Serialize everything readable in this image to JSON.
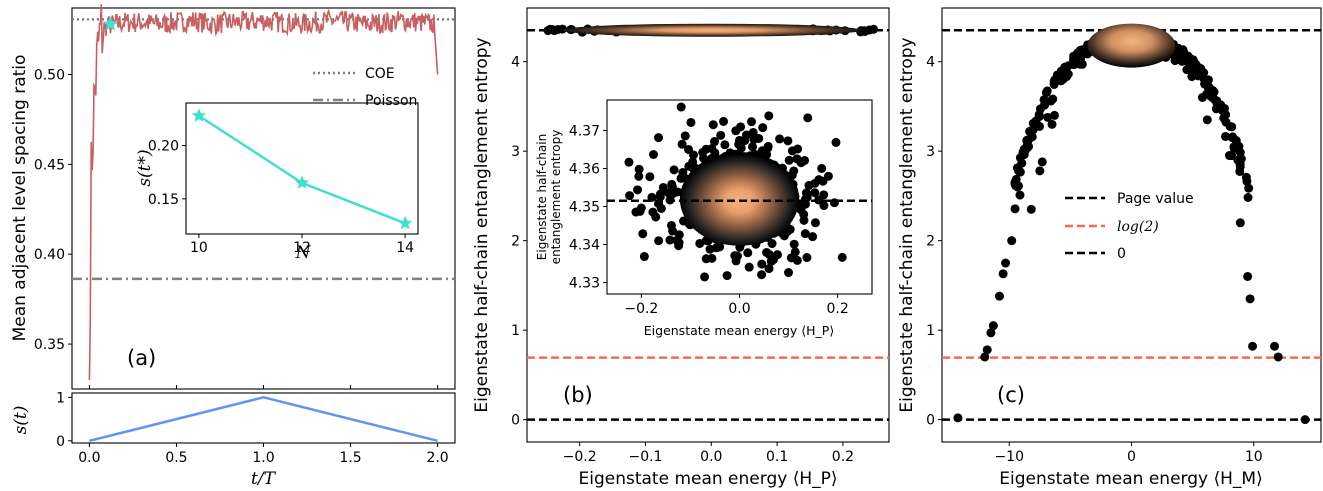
{
  "chart_data": [
    {
      "panel": "a-top",
      "type": "line",
      "tag": "(a)",
      "ylabel": "Mean adjacent level spacing ratio",
      "xlim": [
        -0.1,
        2.1
      ],
      "ylim": [
        0.325,
        0.537
      ],
      "yticks": [
        0.35,
        0.4,
        0.45,
        0.5
      ],
      "ytick_labels": [
        "0.35",
        "0.40",
        "0.45",
        "0.50"
      ],
      "xticks": [
        0.0,
        0.5,
        1.0,
        1.5,
        2.0
      ],
      "legend": [
        "COE",
        "Poisson"
      ],
      "series": [
        {
          "name": "COE",
          "type": "hline",
          "y": 0.5307,
          "color": "#808080",
          "style": "dotted"
        },
        {
          "name": "Poisson",
          "type": "hline",
          "y": 0.3863,
          "color": "#808080",
          "style": "dashdot"
        },
        {
          "type": "line",
          "color": "#c96060",
          "x": [
            0.0,
            0.01,
            0.02,
            0.03,
            0.04,
            0.05,
            0.06,
            0.07,
            0.08,
            0.1,
            0.14,
            0.2,
            0.3,
            0.4,
            0.5,
            0.6,
            0.7,
            0.8,
            0.9,
            1.0,
            1.1,
            1.2,
            1.3,
            1.4,
            1.5,
            1.6,
            1.7,
            1.8,
            1.9,
            1.98,
            2.0
          ],
          "y": [
            0.33,
            0.44,
            0.47,
            0.49,
            0.5,
            0.515,
            0.52,
            0.524,
            0.526,
            0.527,
            0.528,
            0.529,
            0.529,
            0.528,
            0.529,
            0.53,
            0.528,
            0.529,
            0.529,
            0.53,
            0.529,
            0.528,
            0.529,
            0.53,
            0.529,
            0.528,
            0.529,
            0.53,
            0.529,
            0.528,
            0.5
          ]
        },
        {
          "type": "marker",
          "marker": "star",
          "color": "#40e0d0",
          "x": 0.12,
          "y": 0.528
        }
      ]
    },
    {
      "panel": "a-inset",
      "type": "line",
      "xlabel": "N",
      "ylabel": "s(t*)",
      "x": [
        10,
        12,
        14
      ],
      "values": [
        0.228,
        0.165,
        0.127
      ],
      "xticks": [
        10,
        12,
        14
      ],
      "yticks": [
        0.15,
        0.2
      ],
      "ytick_labels": [
        "0.15",
        "0.20"
      ],
      "xlim": [
        9.75,
        14.25
      ],
      "ylim": [
        0.117,
        0.24
      ],
      "color": "#40e0d0",
      "marker": "star"
    },
    {
      "panel": "a-bottom",
      "type": "line",
      "xlabel": "t/T",
      "ylabel": "s(t)",
      "x": [
        0,
        1,
        2
      ],
      "values": [
        0,
        1,
        0
      ],
      "xlim": [
        -0.1,
        2.1
      ],
      "ylim": [
        -0.05,
        1.1
      ],
      "xticks": [
        0.0,
        0.5,
        1.0,
        1.5,
        2.0
      ],
      "xtick_labels": [
        "0.0",
        "0.5",
        "1.0",
        "1.5",
        "2.0"
      ],
      "yticks": [
        0,
        1
      ],
      "ytick_labels": [
        "0",
        "1"
      ],
      "color": "#6495ed"
    },
    {
      "panel": "b",
      "type": "scatter",
      "tag": "(b)",
      "xlabel": "Eigenstate mean energy ⟨H_P⟩",
      "ylabel": "Eigenstate half-chain entanglement entropy",
      "xlim": [
        -0.28,
        0.27
      ],
      "ylim": [
        -0.25,
        4.6
      ],
      "xticks": [
        -0.2,
        -0.1,
        0.0,
        0.1,
        0.2
      ],
      "xtick_labels": [
        "−0.2",
        "−0.1",
        "0.0",
        "0.1",
        "0.2"
      ],
      "yticks": [
        0,
        1,
        2,
        3,
        4
      ],
      "ytick_labels": [
        "0",
        "1",
        "2",
        "3",
        "4"
      ],
      "hlines": [
        {
          "name": "Page value",
          "y": 4.352,
          "color": "#000000",
          "style": "dashed"
        },
        {
          "name": "log(2)",
          "y": 0.693,
          "color": "#f26d50",
          "style": "dashed"
        },
        {
          "name": "0",
          "y": 0,
          "color": "#000000",
          "style": "dashed"
        }
      ],
      "points": {
        "x_range": [
          -0.26,
          0.25
        ],
        "y": 4.352
      }
    },
    {
      "panel": "b-inset",
      "type": "scatter",
      "xlabel": "Eigenstate mean energy ⟨H_P⟩",
      "ylabel_lines": [
        "Eigenstate half-chain",
        "entanglement entropy"
      ],
      "xlim": [
        -0.27,
        0.27
      ],
      "ylim": [
        4.327,
        4.378
      ],
      "xticks": [
        -0.2,
        0.0,
        0.2
      ],
      "xtick_labels": [
        "−0.2",
        "0.0",
        "0.2"
      ],
      "yticks": [
        4.33,
        4.34,
        4.35,
        4.36,
        4.37
      ],
      "ytick_labels": [
        "4.33",
        "4.34",
        "4.35",
        "4.36",
        "4.37"
      ],
      "page_value": 4.3515,
      "cloud": {
        "center": [
          0.0,
          4.352
        ],
        "spread": [
          0.09,
          0.0085
        ]
      }
    },
    {
      "panel": "c",
      "type": "scatter",
      "tag": "(c)",
      "xlabel": "Eigenstate mean energy ⟨H_M⟩",
      "ylabel": "Eigenstate half-chain entanglement entropy",
      "xlim": [
        -15.5,
        15.5
      ],
      "ylim": [
        -0.25,
        4.6
      ],
      "xticks": [
        -10,
        0,
        10
      ],
      "xtick_labels": [
        "−10",
        "0",
        "10"
      ],
      "yticks": [
        0,
        1,
        2,
        3,
        4
      ],
      "ytick_labels": [
        "0",
        "1",
        "2",
        "3",
        "4"
      ],
      "legend": [
        "Page value",
        "log(2)",
        "0"
      ],
      "hlines": [
        {
          "name": "Page value",
          "y": 4.352,
          "color": "#000000",
          "style": "dashed"
        },
        {
          "name": "log(2)",
          "y": 0.693,
          "color": "#f26d50",
          "style": "dashed"
        },
        {
          "name": "0",
          "y": 0,
          "color": "#000000",
          "style": "dashed"
        }
      ],
      "scatter_points": [
        [
          -14.2,
          0.02
        ],
        [
          14.2,
          0.0
        ],
        [
          -12.0,
          0.7
        ],
        [
          -11.8,
          0.78
        ],
        [
          -11.5,
          0.97
        ],
        [
          -11.3,
          1.05
        ],
        [
          -10.8,
          1.38
        ],
        [
          -10.5,
          1.63
        ],
        [
          -10.3,
          1.75
        ],
        [
          -9.8,
          2.0
        ],
        [
          -8.2,
          2.35
        ],
        [
          -7.5,
          2.78
        ],
        [
          -7.3,
          2.88
        ],
        [
          -6.5,
          3.3
        ],
        [
          -6.3,
          3.4
        ],
        [
          9.9,
          0.82
        ],
        [
          11.7,
          0.82
        ],
        [
          12.0,
          0.7
        ],
        [
          9.7,
          1.35
        ],
        [
          9.5,
          1.6
        ],
        [
          8.9,
          2.2
        ],
        [
          8.2,
          2.95
        ],
        [
          6.2,
          3.35
        ],
        [
          5.8,
          3.6
        ]
      ]
    }
  ]
}
